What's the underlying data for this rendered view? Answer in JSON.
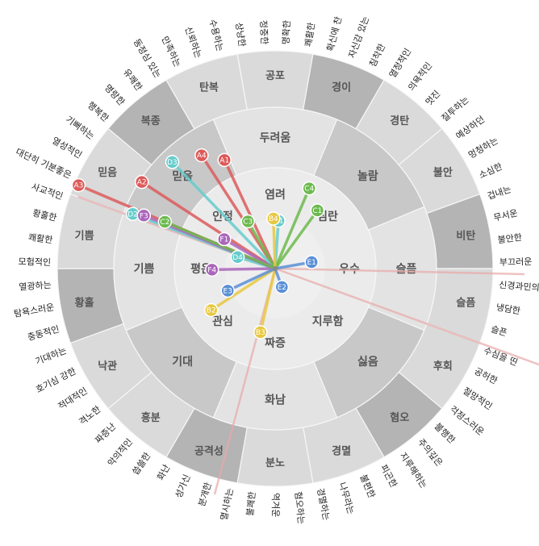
{
  "colors": {
    "outer_light": "#dadada",
    "outer_dark": "#b4b4b4",
    "mid_light": "#e3e3e3",
    "mid_dark": "#c8c8c8",
    "inner": "#ebebeb",
    "center": "#efefef",
    "ring_line": "#f7f7f7",
    "guide_line": "#e8a8a8"
  },
  "wheel": {
    "outer_sectors": [
      "공포",
      "경이",
      "경탄",
      "불안",
      "비탄",
      "슬픔",
      "후회",
      "혐오",
      "경멸",
      "분노",
      "공격성",
      "흥분",
      "낙관",
      "황홀",
      "기쁨",
      "믿음",
      "복종",
      "탄복"
    ],
    "mid_sectors": [
      "두려움",
      "놀람",
      "슬픔",
      "싫음",
      "화남",
      "기대",
      "기쁨",
      "믿음"
    ],
    "inner_sectors": [
      "염려",
      "심란",
      "우수",
      "지루함",
      "짜증",
      "관심",
      "평온",
      "인정"
    ],
    "outer_words": [
      "명확한",
      "쾌활한",
      "확신에 찬",
      "자신감 있는",
      "침착한",
      "열정적인",
      "의욕적인",
      "멋진",
      "질투하는",
      "예상하던",
      "멍청하는",
      "소심한",
      "겁내는",
      "무서운",
      "불안한",
      "부끄러운",
      "신경과민의",
      "냉담한",
      "슬픈",
      "수심을 띤",
      "공허한",
      "절망적인",
      "걱정스러운",
      "불행한",
      "주의깊은",
      "지루해하는",
      "피곤한",
      "불편한",
      "나무라는",
      "경멸하는",
      "혐오하는",
      "역겨운",
      "불쾌한",
      "멸시하는",
      "분개한",
      "성가신",
      "화난",
      "씁쓸한",
      "악의적인",
      "짜증난",
      "격노한",
      "적대적인",
      "호기심 강한",
      "기대하는",
      "충동적인",
      "탐욕스러운",
      "열광하는",
      "모험적인",
      "쾌활한",
      "황홀한",
      "사교적인",
      "대단히 기분좋은",
      "열성적인",
      "기뻐하는",
      "행복한",
      "명랑한",
      "유쾌한",
      "동정심 있는",
      "만족하는",
      "신뢰하는",
      "수용하는",
      "상냥한",
      "정중한"
    ],
    "right_labels": [
      "슬픈",
      "수심을 띤"
    ]
  },
  "markers": [
    {
      "id": "A1",
      "color": "#dd5a5a",
      "r": 0.55,
      "deg": 115
    },
    {
      "id": "A3",
      "color": "#dd5a5a",
      "r": 0.98,
      "deg": 157
    },
    {
      "id": "A4",
      "color": "#dd5a5a",
      "r": 0.62,
      "deg": 123
    },
    {
      "id": "A2",
      "color": "#dd5a5a",
      "r": 0.73,
      "deg": 147
    },
    {
      "id": "D3",
      "color": "#66cccc",
      "r": 0.68,
      "deg": 134
    },
    {
      "id": "D1",
      "color": "#66cccc",
      "r": 0.22,
      "deg": 86
    },
    {
      "id": "D2",
      "color": "#66cccc",
      "r": 0.7,
      "deg": 159
    },
    {
      "id": "D4",
      "color": "#66cccc",
      "r": 0.18,
      "deg": 163
    },
    {
      "id": "F3",
      "color": "#aa66bb",
      "r": 0.65,
      "deg": 158
    },
    {
      "id": "F1",
      "color": "#aa66bb",
      "r": 0.27,
      "deg": 150
    },
    {
      "id": "F4",
      "color": "#aa66bb",
      "r": 0.29,
      "deg": 181
    },
    {
      "id": "C2",
      "color": "#6cba4e",
      "r": 0.55,
      "deg": 157
    },
    {
      "id": "C3",
      "color": "#6cba4e",
      "r": 0.25,
      "deg": 120
    },
    {
      "id": "C4",
      "color": "#6cba4e",
      "r": 0.4,
      "deg": 67
    },
    {
      "id": "C1",
      "color": "#6cba4e",
      "r": 0.33,
      "deg": 54
    },
    {
      "id": "B4",
      "color": "#e8c840",
      "r": 0.23,
      "deg": 92
    },
    {
      "id": "B2",
      "color": "#e8c840",
      "r": 0.35,
      "deg": 213
    },
    {
      "id": "B3",
      "color": "#e8c840",
      "r": 0.3,
      "deg": 257
    },
    {
      "id": "E1",
      "color": "#5a8fd6",
      "r": 0.17,
      "deg": 10
    },
    {
      "id": "E2",
      "color": "#5a8fd6",
      "r": 0.09,
      "deg": 290
    },
    {
      "id": "E3",
      "color": "#5a8fd6",
      "r": 0.24,
      "deg": 205
    }
  ]
}
